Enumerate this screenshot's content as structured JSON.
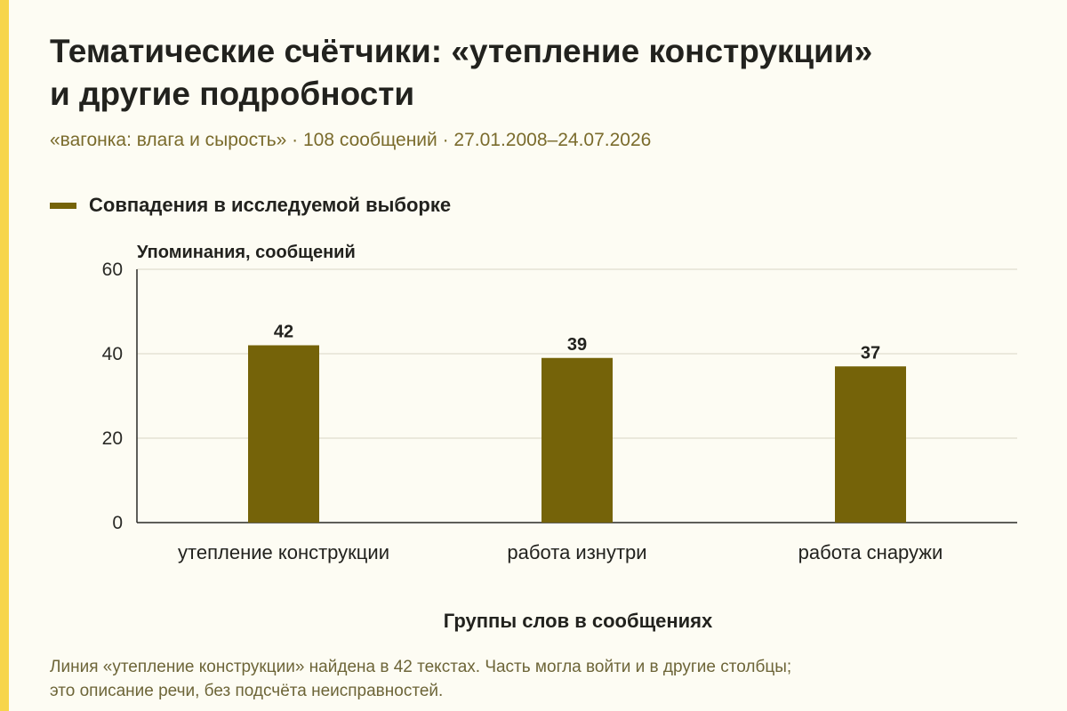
{
  "header": {
    "title_line1": "Тематические счётчики: «утепление конструкции»",
    "title_line2": "и другие подробности",
    "subtitle": "«вагонка: влага и сырость» · 108 сообщений · 27.01.2008–24.07.2026"
  },
  "legend": {
    "label": "Совпадения в исследуемой выборке",
    "color": "#756309"
  },
  "footnote": {
    "line1": "Линия «утепление конструкции» найдена в 42 текстах. Часть могла войти и в другие столбцы;",
    "line2": "это описание речи, без подсчёта неисправностей."
  },
  "chart_data": {
    "type": "bar",
    "title": "Тематические счётчики: «утепление конструкции» и другие подробности",
    "categories": [
      "утепление конструкции",
      "работа изнутри",
      "работа снаружи"
    ],
    "series": [
      {
        "name": "Совпадения в исследуемой выборке",
        "values": [
          42,
          39,
          37
        ],
        "color": "#756309"
      }
    ],
    "data_labels": [
      "42",
      "39",
      "37"
    ],
    "xlabel": "Группы слов в сообщениях",
    "ylabel": "Упоминания, сообщений",
    "ylim": [
      0,
      60
    ],
    "yticks": [
      0,
      20,
      40,
      60
    ],
    "grid": true,
    "legend_position": "top-left"
  }
}
